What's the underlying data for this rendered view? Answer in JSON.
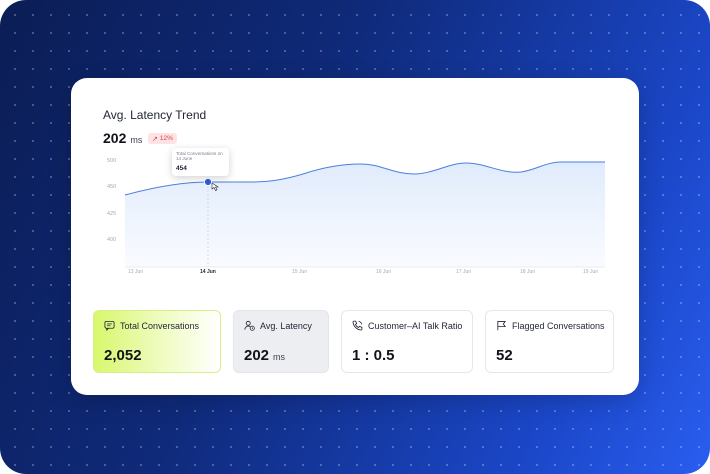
{
  "chart_card": {
    "title": "Avg. Latency Trend",
    "value": "202",
    "unit": "ms",
    "change": "12%",
    "change_color": "#d64545"
  },
  "chart_data": {
    "type": "area",
    "x": [
      "13 Jun",
      "",
      "14 Jun",
      "",
      "15 Jun",
      "",
      "16 Jun",
      "",
      "17 Jun",
      "",
      "18 Jun",
      "19 Jun"
    ],
    "y_ticks": [
      "500",
      "450",
      "425",
      "400"
    ],
    "x_ticks": [
      "13 Jun",
      "14 Jun",
      "15 Jun",
      "16 Jun",
      "17 Jun",
      "18 Jun",
      "19 Jun"
    ],
    "line_color": "#4d7fdc",
    "fill_color": "#e7f0fd",
    "highlight": {
      "x_label": "14 Jun",
      "label": "Total Conversations on 14 June",
      "value": "454"
    }
  },
  "stats": [
    {
      "label": "Total Conversations",
      "value": "2,052",
      "unit": "",
      "icon": "chat-icon"
    },
    {
      "label": "Avg. Latency",
      "value": "202",
      "unit": "ms",
      "icon": "user-clock-icon"
    },
    {
      "label": "Customer–AI Talk Ratio",
      "value": "1 : 0.5",
      "unit": "",
      "icon": "phone-icon"
    },
    {
      "label": "Flagged Conversations",
      "value": "52",
      "unit": "",
      "icon": "flag-icon"
    }
  ]
}
